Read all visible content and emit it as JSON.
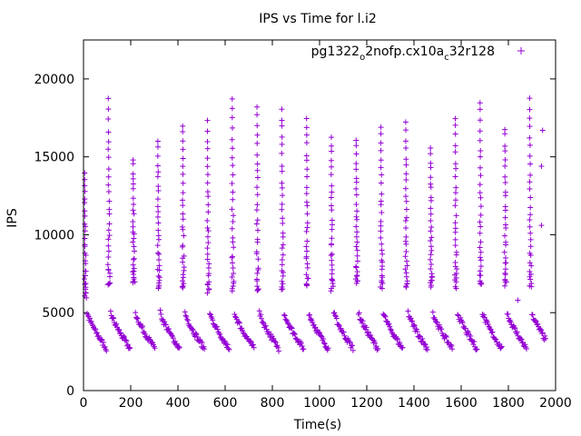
{
  "chart_data": {
    "type": "scatter",
    "title": "IPS vs Time for l.i2",
    "xlabel": "Time(s)",
    "ylabel": "IPS",
    "xlim": [
      0,
      2000
    ],
    "ylim": [
      0,
      22500
    ],
    "xticks": [
      0,
      200,
      400,
      600,
      800,
      1000,
      1200,
      1400,
      1600,
      1800,
      2000
    ],
    "yticks": [
      0,
      5000,
      10000,
      15000,
      20000
    ],
    "marker": "+",
    "legend_position": "top-right",
    "series": [
      {
        "name": "pg1322_o2nofp.cx10a_c32r128",
        "legend": {
          "base": "pg1322",
          "sub1": "o",
          "mid": "2nofp.cx10a",
          "sub2": "c",
          "tail": "32r128"
        },
        "color": "#9400d3",
        "cycle_period_s": 105.5,
        "upper_band_x": [
          5,
          105,
          210,
          315,
          420,
          525,
          630,
          735,
          840,
          945,
          1050,
          1155,
          1260,
          1365,
          1470,
          1575,
          1680,
          1785,
          1890
        ],
        "upper_band_top_ips": [
          14000,
          18600,
          14900,
          16100,
          17100,
          17200,
          18700,
          18300,
          18100,
          17500,
          16300,
          16200,
          16900,
          17200,
          15700,
          17500,
          18600,
          16900,
          18800
        ],
        "upper_band_bottom_ips": [
          6100,
          6700,
          6900,
          6600,
          6500,
          6400,
          6500,
          6500,
          6600,
          6700,
          6500,
          6900,
          6600,
          6700,
          6700,
          6700,
          6800,
          6800,
          6700
        ],
        "lower_band_start_ips": 5000,
        "lower_band_end_ips": 2700,
        "outliers": [
          {
            "x": 1840,
            "ips": 5800
          },
          {
            "x": 1940,
            "ips": 10600
          },
          {
            "x": 1945,
            "ips": 16700
          },
          {
            "x": 1940,
            "ips": 14400
          }
        ]
      }
    ]
  }
}
